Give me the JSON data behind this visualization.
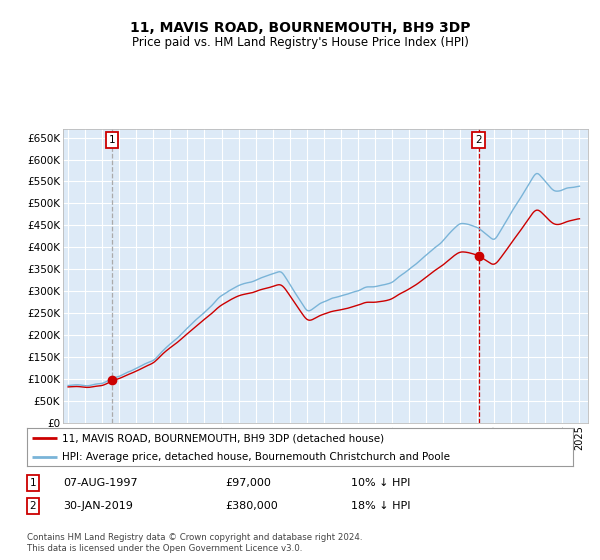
{
  "title": "11, MAVIS ROAD, BOURNEMOUTH, BH9 3DP",
  "subtitle": "Price paid vs. HM Land Registry's House Price Index (HPI)",
  "legend_line1": "11, MAVIS ROAD, BOURNEMOUTH, BH9 3DP (detached house)",
  "legend_line2": "HPI: Average price, detached house, Bournemouth Christchurch and Poole",
  "sale1_date": "07-AUG-1997",
  "sale1_price": 97000,
  "sale1_pct": "10% ↓ HPI",
  "sale2_date": "30-JAN-2019",
  "sale2_price": 380000,
  "sale2_pct": "18% ↓ HPI",
  "footer": "Contains HM Land Registry data © Crown copyright and database right 2024.\nThis data is licensed under the Open Government Licence v3.0.",
  "hpi_color": "#7ab4d8",
  "price_color": "#cc0000",
  "marker_color": "#cc0000",
  "vline1_color": "#aaaaaa",
  "vline2_color": "#cc0000",
  "bg_color": "#ddeaf7",
  "grid_color": "#ffffff",
  "ylim": [
    0,
    670000
  ],
  "yticks": [
    0,
    50000,
    100000,
    150000,
    200000,
    250000,
    300000,
    350000,
    400000,
    450000,
    500000,
    550000,
    600000,
    650000
  ],
  "sale1_x": 1997.58,
  "sale2_x": 2019.08,
  "xstart": 1995,
  "xend": 2025
}
